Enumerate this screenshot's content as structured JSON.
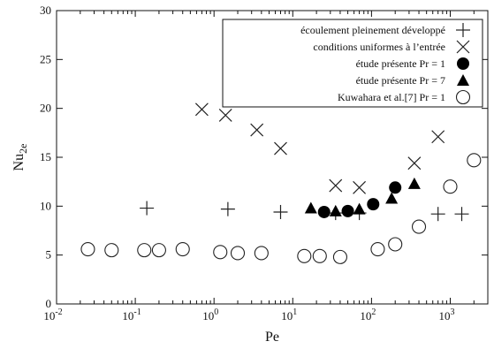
{
  "chart_data": {
    "type": "scatter",
    "xscale": "log",
    "xlim": [
      0.01,
      3000
    ],
    "ylim": [
      0,
      30
    ],
    "xlabel": "Pe",
    "ylabel": "Nu",
    "ylabel_sub": "2e",
    "xticks": [
      {
        "value": 0.01,
        "base": "10",
        "exp": "-2"
      },
      {
        "value": 0.1,
        "base": "10",
        "exp": "-1"
      },
      {
        "value": 1,
        "base": "10",
        "exp": "0"
      },
      {
        "value": 10,
        "base": "10",
        "exp": "1"
      },
      {
        "value": 100,
        "base": "10",
        "exp": "2"
      },
      {
        "value": 1000,
        "base": "10",
        "exp": "3"
      }
    ],
    "yticks": [
      0,
      5,
      10,
      15,
      20,
      25,
      30
    ],
    "legend_position": "top-right",
    "series": [
      {
        "name": "écoulement pleinement développé",
        "marker": "plus",
        "x": [
          0.14,
          1.5,
          7,
          35,
          70,
          700,
          1400
        ],
        "y": [
          9.8,
          9.7,
          9.4,
          9.3,
          9.3,
          9.2,
          9.2
        ]
      },
      {
        "name": "conditions uniformes à l’entrée",
        "marker": "x",
        "x": [
          0.7,
          1.4,
          3.5,
          7,
          35,
          70,
          350,
          700
        ],
        "y": [
          19.9,
          19.3,
          17.8,
          15.9,
          12.1,
          11.9,
          14.4,
          17.1
        ]
      },
      {
        "name": "étude présente Pr = 1",
        "marker": "filled-circle",
        "x": [
          25,
          50,
          105,
          200
        ],
        "y": [
          9.4,
          9.5,
          10.2,
          11.9
        ]
      },
      {
        "name": "étude présente Pr = 7",
        "marker": "filled-triangle",
        "x": [
          17,
          35,
          70,
          180,
          350
        ],
        "y": [
          9.8,
          9.5,
          9.7,
          10.8,
          12.3
        ]
      },
      {
        "name": "Kuwahara et al.[7] Pr = 1",
        "marker": "open-circle",
        "x": [
          0.025,
          0.05,
          0.13,
          0.2,
          0.4,
          1.2,
          2,
          4,
          14,
          22,
          40,
          120,
          200,
          400,
          1000,
          2000
        ],
        "y": [
          5.6,
          5.5,
          5.5,
          5.5,
          5.6,
          5.3,
          5.2,
          5.2,
          4.9,
          4.9,
          4.8,
          5.6,
          6.1,
          7.9,
          12.0,
          14.7
        ]
      }
    ]
  }
}
